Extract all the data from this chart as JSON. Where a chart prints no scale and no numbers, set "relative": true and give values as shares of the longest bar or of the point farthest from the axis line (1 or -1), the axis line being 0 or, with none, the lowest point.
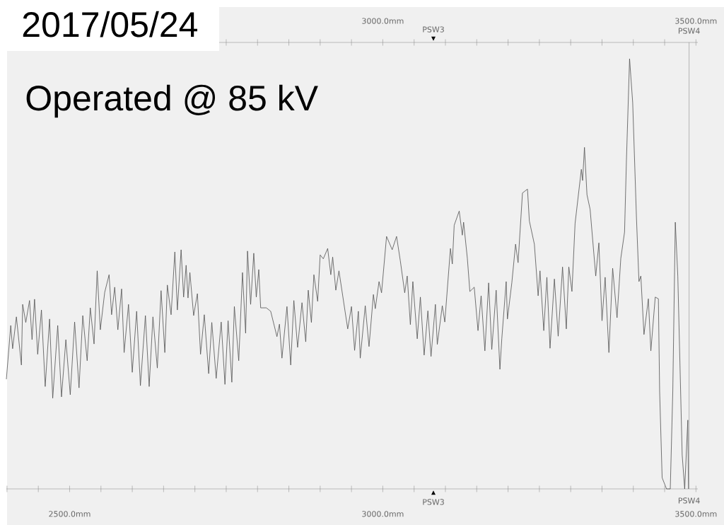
{
  "chart_data": {
    "type": "line",
    "title": "2017/05/24",
    "relative": true,
    "color": "#505050",
    "annotations": [
      "Operated @ 85 kV",
      "PSW3"
    ],
    "ref_lines": [
      {
        "axis": "x",
        "value": 3489,
        "label": "PSW4",
        "color": "#808080"
      }
    ],
    "xlim": [
      2399,
      3503
    ],
    "xticks": [
      {
        "value": 2400,
        "label": null
      },
      {
        "value": 2450,
        "label": null
      },
      {
        "value": 2500,
        "label": "2500.0mm"
      },
      {
        "value": 2550,
        "label": null
      },
      {
        "value": 2600,
        "label": null
      },
      {
        "value": 2650,
        "label": null
      },
      {
        "value": 2700,
        "label": null
      },
      {
        "value": 2750,
        "label": null
      },
      {
        "value": 2800,
        "label": null
      },
      {
        "value": 2850,
        "label": null
      },
      {
        "value": 2900,
        "label": null
      },
      {
        "value": 2950,
        "label": null
      },
      {
        "value": 3000,
        "label": "3000.0mm"
      },
      {
        "value": 3050,
        "label": null
      },
      {
        "value": 3100,
        "label": null
      },
      {
        "value": 3150,
        "label": null
      },
      {
        "value": 3200,
        "label": null
      },
      {
        "value": 3250,
        "label": null
      },
      {
        "value": 3300,
        "label": null
      },
      {
        "value": 3350,
        "label": null
      },
      {
        "value": 3400,
        "label": null
      },
      {
        "value": 3450,
        "label": null
      },
      {
        "value": 3500,
        "label": "3500.0mm"
      }
    ],
    "x2lim": [
      2399,
      3503
    ],
    "x2ticks": [
      {
        "value": 2500,
        "label": null
      },
      {
        "value": 2550,
        "label": null
      },
      {
        "value": 2600,
        "label": null
      },
      {
        "value": 2650,
        "label": null
      },
      {
        "value": 2700,
        "label": null
      },
      {
        "value": 2750,
        "label": null
      },
      {
        "value": 2800,
        "label": null
      },
      {
        "value": 2850,
        "label": null
      },
      {
        "value": 2900,
        "label": null
      },
      {
        "value": 2950,
        "label": null
      },
      {
        "value": 3000,
        "label": "3000.0mm"
      },
      {
        "value": 3050,
        "label": null
      },
      {
        "value": 3100,
        "label": null
      },
      {
        "value": 3150,
        "label": null
      },
      {
        "value": 3200,
        "label": null
      },
      {
        "value": 3250,
        "label": null
      },
      {
        "value": 3300,
        "label": null
      },
      {
        "value": 3350,
        "label": null
      },
      {
        "value": 3400,
        "label": null
      },
      {
        "value": 3450,
        "label": null
      },
      {
        "value": 3500,
        "label": "3500.0mm"
      }
    ],
    "x": [
      2399,
      2406,
      2409,
      2415,
      2423,
      2425,
      2430,
      2436,
      2440,
      2444,
      2449,
      2455,
      2461,
      2468,
      2473,
      2481,
      2487,
      2494,
      2501,
      2508,
      2515,
      2521,
      2528,
      2533,
      2539,
      2544,
      2549,
      2556,
      2563,
      2567,
      2572,
      2577,
      2583,
      2587,
      2594,
      2600,
      2607,
      2613,
      2621,
      2627,
      2633,
      2640,
      2646,
      2652,
      2656,
      2662,
      2668,
      2672,
      2678,
      2682,
      2686,
      2689,
      2692,
      2698,
      2704,
      2709,
      2715,
      2722,
      2727,
      2734,
      2742,
      2748,
      2753,
      2759,
      2763,
      2770,
      2776,
      2781,
      2784,
      2789,
      2794,
      2798,
      2802,
      2805,
      2814,
      2821,
      2831,
      2835,
      2839,
      2847,
      2853,
      2858,
      2864,
      2871,
      2877,
      2881,
      2886,
      2890,
      2896,
      2900,
      2905,
      2912,
      2917,
      2920,
      2925,
      2930,
      2944,
      2950,
      2955,
      2961,
      2964,
      2972,
      2978,
      2985,
      2988,
      2994,
      2998,
      3006,
      3015,
      3022,
      3028,
      3035,
      3039,
      3044,
      3048,
      3055,
      3060,
      3066,
      3072,
      3077,
      3084,
      3087,
      3095,
      3099,
      3108,
      3111,
      3114,
      3122,
      3127,
      3129,
      3135,
      3139,
      3146,
      3152,
      3157,
      3163,
      3169,
      3174,
      3181,
      3187,
      3190,
      3197,
      3199,
      3206,
      3212,
      3216,
      3223,
      3231,
      3234,
      3242,
      3248,
      3251,
      3257,
      3262,
      3267,
      3274,
      3280,
      3287,
      3293,
      3297,
      3302,
      3307,
      3317,
      3319,
      3322,
      3326,
      3331,
      3340,
      3345,
      3350,
      3355,
      3361,
      3367,
      3374,
      3380,
      3386,
      3389,
      3394,
      3399,
      3405,
      3409,
      3412,
      3417,
      3424,
      3428,
      3435,
      3440,
      3442,
      3446,
      3453,
      3459,
      3463,
      3467,
      3471,
      3478,
      3482,
      3487,
      3488
    ],
    "values": [
      0.255,
      0.38,
      0.326,
      0.4,
      0.288,
      0.429,
      0.387,
      0.438,
      0.347,
      0.441,
      0.313,
      0.416,
      0.238,
      0.395,
      0.211,
      0.38,
      0.214,
      0.347,
      0.219,
      0.388,
      0.235,
      0.403,
      0.298,
      0.421,
      0.337,
      0.507,
      0.37,
      0.457,
      0.498,
      0.405,
      0.469,
      0.37,
      0.465,
      0.317,
      0.429,
      0.271,
      0.413,
      0.24,
      0.403,
      0.238,
      0.4,
      0.281,
      0.461,
      0.317,
      0.474,
      0.405,
      0.551,
      0.416,
      0.556,
      0.446,
      0.52,
      0.444,
      0.503,
      0.403,
      0.454,
      0.313,
      0.405,
      0.268,
      0.387,
      0.257,
      0.388,
      0.243,
      0.391,
      0.248,
      0.424,
      0.298,
      0.503,
      0.362,
      0.553,
      0.429,
      0.548,
      0.446,
      0.51,
      0.421,
      0.421,
      0.413,
      0.354,
      0.383,
      0.304,
      0.424,
      0.288,
      0.438,
      0.329,
      0.433,
      0.342,
      0.462,
      0.387,
      0.498,
      0.436,
      0.544,
      0.535,
      0.559,
      0.498,
      0.539,
      0.462,
      0.507,
      0.372,
      0.424,
      0.322,
      0.413,
      0.304,
      0.426,
      0.331,
      0.452,
      0.419,
      0.482,
      0.456,
      0.587,
      0.556,
      0.587,
      0.53,
      0.456,
      0.495,
      0.382,
      0.482,
      0.349,
      0.446,
      0.311,
      0.414,
      0.308,
      0.429,
      0.336,
      0.426,
      0.388,
      0.559,
      0.523,
      0.613,
      0.646,
      0.59,
      0.62,
      0.536,
      0.459,
      0.469,
      0.368,
      0.449,
      0.321,
      0.479,
      0.324,
      0.462,
      0.278,
      0.349,
      0.482,
      0.395,
      0.479,
      0.569,
      0.526,
      0.688,
      0.697,
      0.623,
      0.569,
      0.449,
      0.507,
      0.368,
      0.492,
      0.327,
      0.488,
      0.355,
      0.516,
      0.372,
      0.516,
      0.459,
      0.617,
      0.743,
      0.717,
      0.794,
      0.684,
      0.65,
      0.495,
      0.572,
      0.391,
      0.492,
      0.317,
      0.513,
      0.398,
      0.536,
      0.597,
      0.765,
      1,
      0.898,
      0.63,
      0.482,
      0.495,
      0.359,
      0.442,
      0.321,
      0.446,
      0.442,
      0.227,
      0.026,
      0,
      0,
      0.227,
      0.62,
      0.495,
      0.079,
      0,
      0.16,
      0
    ]
  }
}
